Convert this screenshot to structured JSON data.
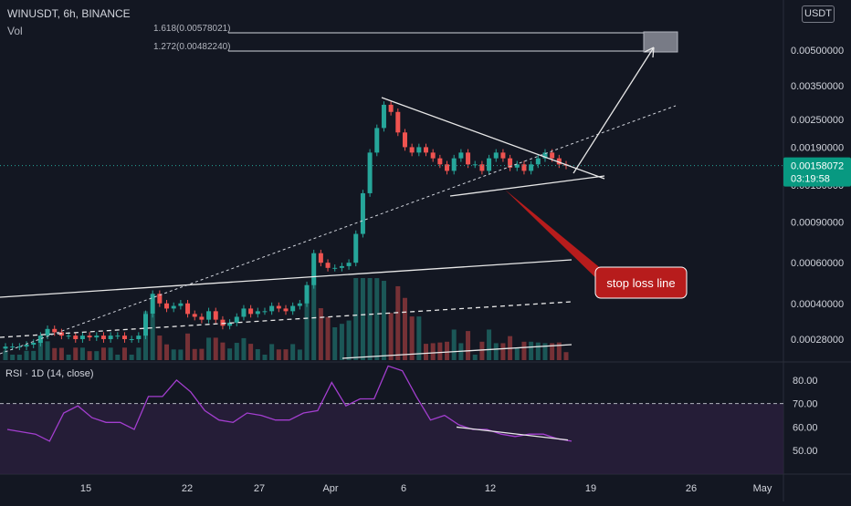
{
  "header": {
    "symbol": "WINUSDT, 6h, BINANCE",
    "volume_label": "Vol"
  },
  "currency_badge": "USDT",
  "price_tag": {
    "value": "0.00158072",
    "countdown": "03:19:58",
    "color": "#089981"
  },
  "stop_loss_label": "stop loss line",
  "fib_levels": [
    {
      "label": "1.618(0.00578021)"
    },
    {
      "label": "1.272(0.00482240)"
    }
  ],
  "rsi": {
    "title": "RSI · 1D (14, close)",
    "ylim": [
      40,
      85
    ],
    "levels": [
      80,
      70,
      60,
      50
    ],
    "upper_band": 70
  },
  "colors": {
    "up": "#26a69a",
    "down": "#ef5350",
    "rsi_line": "#a33ecf",
    "rsi_fill": "#2a1f3d",
    "background": "#131722"
  },
  "chart_data": [
    {
      "type": "candlestick",
      "scale": "log",
      "x_tick_labels": [
        "15",
        "22",
        "27",
        "Apr",
        "6",
        "12",
        "19",
        "26",
        "May"
      ],
      "y_tick_labels": [
        "0.00500000",
        "0.00350000",
        "0.00250000",
        "0.00190000",
        "0.00130000",
        "0.00090000",
        "0.00060000",
        "0.00040000",
        "0.00028000"
      ],
      "y_ticks": [
        0.005,
        0.0035,
        0.0025,
        0.0019,
        0.0013,
        0.0009,
        0.0006,
        0.0004,
        0.00028
      ],
      "last_price": 0.00158072,
      "series": [
        {
          "values": [
            0.00026,
            0.00026,
            0.00026,
            0.000265,
            0.00027,
            0.00029,
            0.00031,
            0.0003,
            0.00029,
            0.00029,
            0.00028,
            0.00029,
            0.000285,
            0.00029,
            0.00028,
            0.00029,
            0.00029,
            0.00028,
            0.00028,
            0.00029,
            0.00036,
            0.00044,
            0.0004,
            0.00038,
            0.00039,
            0.0004,
            0.00036,
            0.00035,
            0.00034,
            0.00037,
            0.00034,
            0.00032,
            0.00033,
            0.00035,
            0.00038,
            0.00036,
            0.00037,
            0.00037,
            0.00039,
            0.00038,
            0.00037,
            0.00039,
            0.0004,
            0.00048,
            0.00066,
            0.0006,
            0.00057,
            0.00057,
            0.00058,
            0.0006,
            0.0008,
            0.0012,
            0.0018,
            0.0023,
            0.0029,
            0.0027,
            0.0022,
            0.0019,
            0.0018,
            0.0019,
            0.0018,
            0.0017,
            0.0016,
            0.0015,
            0.0017,
            0.0018,
            0.0016,
            0.0016,
            0.0015,
            0.0017,
            0.0018,
            0.0017,
            0.00155,
            0.0016,
            0.0015,
            0.0016,
            0.0017,
            0.0018,
            0.0017,
            0.0016,
            0.00158
          ]
        }
      ]
    },
    {
      "type": "line",
      "title": "RSI · 1D (14, close)",
      "ylim": [
        40,
        85
      ],
      "y_tick_labels": [
        "80.00",
        "70.00",
        "60.00",
        "50.00"
      ],
      "y_ticks": [
        80,
        70,
        60,
        50
      ],
      "series": [
        {
          "values": [
            59,
            58,
            57,
            54,
            66,
            69,
            64,
            62,
            62,
            59,
            73,
            73,
            80,
            75,
            67,
            63,
            62,
            66,
            65,
            63,
            63,
            66,
            67,
            79,
            69,
            72,
            72,
            86,
            84,
            73,
            63,
            65,
            61,
            59,
            59,
            57,
            56,
            57,
            57,
            55,
            54
          ]
        }
      ]
    }
  ]
}
